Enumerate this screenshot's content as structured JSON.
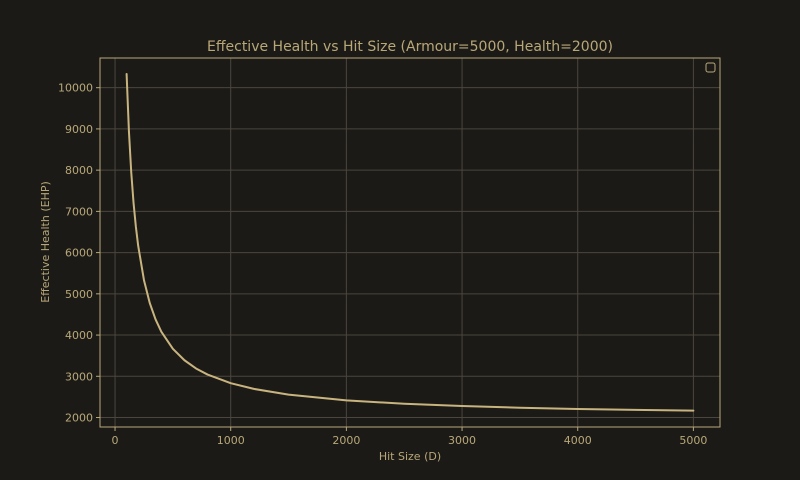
{
  "chart_data": {
    "type": "line",
    "title": "Effective Health vs Hit Size (Armour=5000, Health=2000)",
    "xlabel": "Hit Size (D)",
    "ylabel": "Effective Health (EHP)",
    "xlim": [
      -130,
      5230
    ],
    "ylim": [
      1770,
      10720
    ],
    "xticks": [
      "0",
      "1000",
      "2000",
      "3000",
      "4000",
      "5000"
    ],
    "yticks": [
      "2000",
      "3000",
      "4000",
      "5000",
      "6000",
      "7000",
      "8000",
      "9000",
      "10000"
    ],
    "grid": true,
    "legend": "top-right",
    "series": [
      {
        "name": "",
        "x": [
          100,
          120,
          140,
          160,
          180,
          200,
          250,
          300,
          350,
          400,
          500,
          600,
          700,
          800,
          1000,
          1200,
          1500,
          2000,
          2500,
          3000,
          3500,
          4000,
          4500,
          5000
        ],
        "y": [
          10333,
          8944,
          7952,
          7208,
          6630,
          6167,
          5333,
          4778,
          4381,
          4083,
          3667,
          3389,
          3190,
          3042,
          2833,
          2694,
          2556,
          2417,
          2333,
          2278,
          2238,
          2208,
          2185,
          2167
        ]
      }
    ]
  },
  "colors": {
    "background": "#1c1a17",
    "axes": "#b8a878",
    "grid": "#4a463e",
    "line": "#c8b47e",
    "text": "#b8a878"
  }
}
